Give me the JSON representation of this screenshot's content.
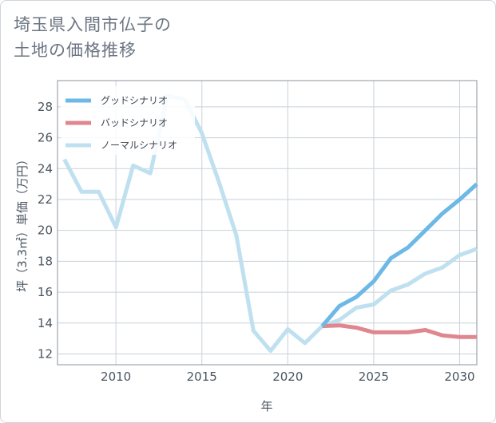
{
  "title": {
    "line1": "埼玉県入間市仏子の",
    "line2": "土地の価格推移"
  },
  "chart_data": {
    "type": "line",
    "xlabel": "年",
    "ylabel": "坪（3.3㎡）単価（万円）",
    "xlim": [
      2006.6,
      2031
    ],
    "ylim": [
      11.3,
      29.7
    ],
    "x_ticks": [
      2010,
      2015,
      2020,
      2025,
      2030
    ],
    "y_ticks": [
      12,
      14,
      16,
      18,
      20,
      22,
      24,
      26,
      28
    ],
    "grid": true,
    "legend_position": "top-left",
    "series": [
      {
        "name": "グッドシナリオ",
        "color": "#6cb8e6",
        "points": [
          [
            2022,
            13.8
          ],
          [
            2023,
            15.1
          ],
          [
            2024,
            15.7
          ],
          [
            2025,
            16.7
          ],
          [
            2026,
            18.2
          ],
          [
            2027,
            18.9
          ],
          [
            2028,
            20.0
          ],
          [
            2029,
            21.1
          ],
          [
            2030,
            22.0
          ],
          [
            2031,
            23.0
          ]
        ]
      },
      {
        "name": "バッドシナリオ",
        "color": "#e0868e",
        "points": [
          [
            2022,
            13.8
          ],
          [
            2023,
            13.85
          ],
          [
            2024,
            13.7
          ],
          [
            2025,
            13.4
          ],
          [
            2026,
            13.4
          ],
          [
            2027,
            13.4
          ],
          [
            2028,
            13.55
          ],
          [
            2029,
            13.2
          ],
          [
            2030,
            13.1
          ],
          [
            2031,
            13.1
          ]
        ]
      },
      {
        "name": "ノーマルシナリオ",
        "color": "#bfe0ef",
        "points": [
          [
            2007,
            24.6
          ],
          [
            2008,
            22.5
          ],
          [
            2009,
            22.5
          ],
          [
            2010,
            20.2
          ],
          [
            2011,
            24.2
          ],
          [
            2012,
            23.7
          ],
          [
            2013,
            28.7
          ],
          [
            2014,
            28.5
          ],
          [
            2015,
            26.3
          ],
          [
            2016,
            23.1
          ],
          [
            2017,
            19.7
          ],
          [
            2018,
            13.5
          ],
          [
            2019,
            12.2
          ],
          [
            2020,
            13.6
          ],
          [
            2021,
            12.7
          ],
          [
            2022,
            13.8
          ],
          [
            2023,
            14.2
          ],
          [
            2024,
            15.0
          ],
          [
            2025,
            15.2
          ],
          [
            2026,
            16.1
          ],
          [
            2027,
            16.5
          ],
          [
            2028,
            17.2
          ],
          [
            2029,
            17.6
          ],
          [
            2030,
            18.4
          ],
          [
            2031,
            18.8
          ]
        ]
      }
    ]
  }
}
